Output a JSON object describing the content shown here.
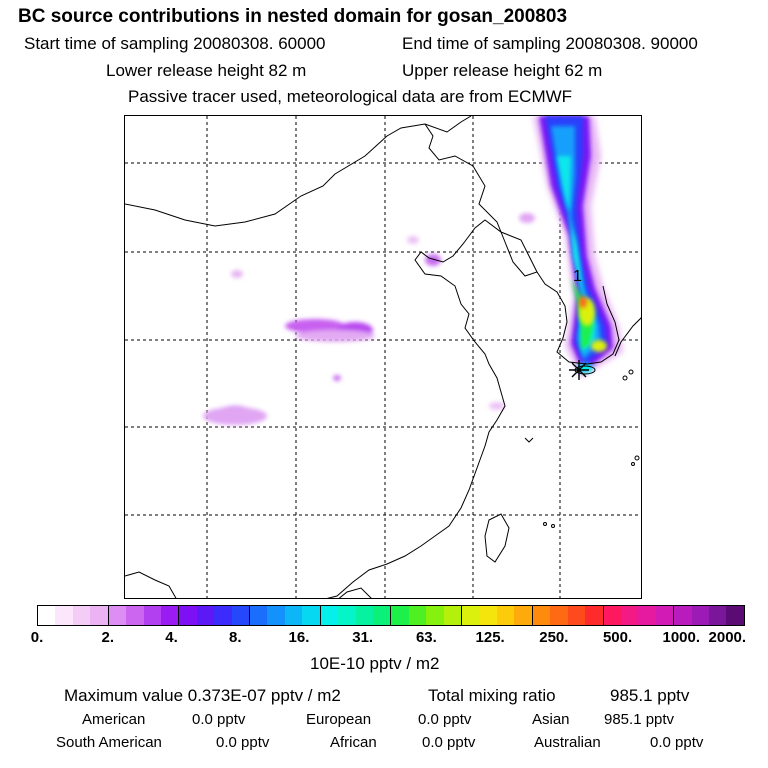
{
  "header": {
    "title": "BC  source contributions in nested domain for gosan_200803",
    "start_time": "Start time of sampling 20080308. 60000",
    "end_time": "End time of sampling 20080308. 90000",
    "lower_height": "Lower release height   82 m",
    "upper_height": "Upper release height   62 m",
    "tracer_note": "Passive tracer used, meteorological data are from ECMWF"
  },
  "map": {
    "marker_label": "1"
  },
  "colorbar": {
    "colors": [
      "#ffffff",
      "#fbe6fb",
      "#f4cdf6",
      "#ebb3f3",
      "#dd8ef2",
      "#cc66f0",
      "#b23ff0",
      "#9a1cf2",
      "#7d10f5",
      "#5d18f8",
      "#3b2cfb",
      "#2648fb",
      "#1b6dfb",
      "#1492fb",
      "#0db6f6",
      "#07d8f2",
      "#05f0ea",
      "#05f5c8",
      "#07f2a0",
      "#0bf078",
      "#1df049",
      "#4ef022",
      "#86f00f",
      "#b5f00c",
      "#dbf00c",
      "#f4e60c",
      "#fccb0a",
      "#feaa0a",
      "#fe8a0e",
      "#fe6a14",
      "#fe4a1c",
      "#fe2a2c",
      "#fe1860",
      "#f41a86",
      "#e61aa0",
      "#d21ab4",
      "#b81cbc",
      "#9c1ab6",
      "#7a169a",
      "#5a0c74"
    ],
    "tick_labels": [
      "0.",
      "2.",
      "4.",
      "8.",
      "16.",
      "31.",
      "63.",
      "125.",
      "250.",
      "500.",
      "1000.",
      "2000."
    ],
    "units": "10E-10 pptv / m2"
  },
  "stats": {
    "max_label": "Maximum value  0.373E-07 pptv / m2",
    "total_label": "Total mixing ratio",
    "total_value": "985.1 pptv"
  },
  "sources": [
    {
      "name": "American",
      "value": "0.0 pptv"
    },
    {
      "name": "European",
      "value": "0.0 pptv"
    },
    {
      "name": "Asian",
      "value": "985.1 pptv"
    },
    {
      "name": "South American",
      "value": "0.0 pptv"
    },
    {
      "name": "African",
      "value": "0.0 pptv"
    },
    {
      "name": "Australian",
      "value": "0.0 pptv"
    }
  ]
}
